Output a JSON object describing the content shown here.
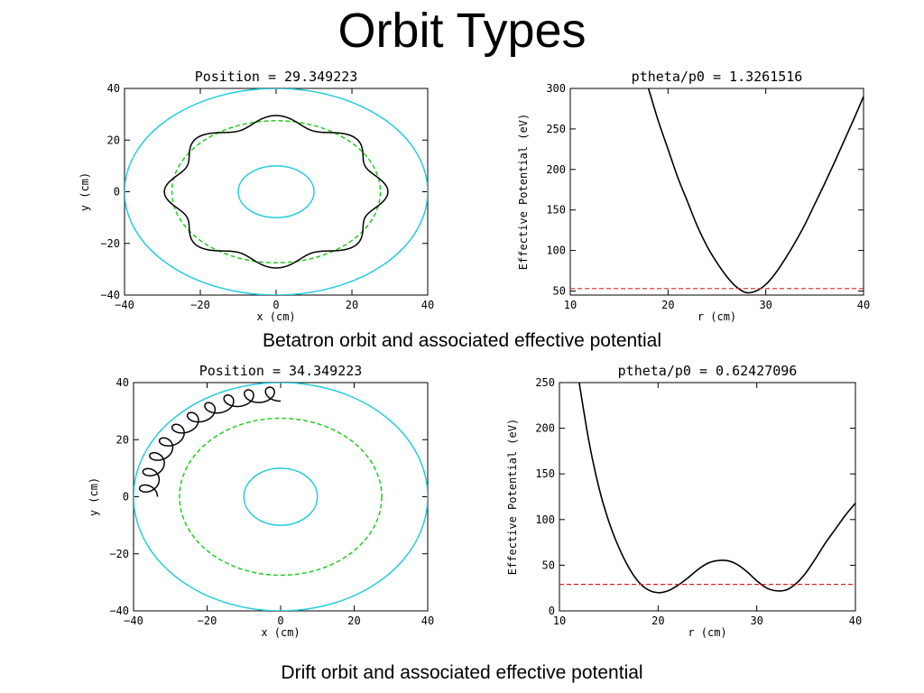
{
  "slide_title": "Orbit Types",
  "caption_top": "Betatron orbit and associated effective potential",
  "caption_bottom": "Drift orbit and associated effective potential",
  "colors": {
    "wall": "#22ccdd",
    "reference_orbit": "#22cc22",
    "trajectory": "#000000",
    "energy_level": "#dd2222"
  },
  "chart_data": [
    {
      "id": "orbit-top",
      "type": "line",
      "title": "Position = 29.349223",
      "xlabel": "x (cm)",
      "ylabel": "y (cm)",
      "xlim": [
        -40,
        40
      ],
      "ylim": [
        -40,
        40
      ],
      "xticks": [
        -40,
        -20,
        0,
        20,
        40
      ],
      "yticks": [
        -40,
        -20,
        0,
        20,
        40
      ],
      "tick_labels_x": [
        "−40",
        "−20",
        "0",
        "20",
        "40"
      ],
      "tick_labels_y": [
        "−40",
        "−20",
        "0",
        "20",
        "40"
      ],
      "circles": [
        {
          "name": "outer wall",
          "r": 40,
          "color": "#22ccdd",
          "style": "solid"
        },
        {
          "name": "inner wall",
          "r": 10,
          "color": "#22ccdd",
          "style": "solid"
        },
        {
          "name": "reference orbit",
          "r": 27.5,
          "color": "#22cc22",
          "style": "dashed"
        }
      ],
      "trajectory": {
        "kind": "betatron",
        "mean_r": 27.5,
        "amplitude": 2.0,
        "lobes": 8,
        "phase_deg": 0,
        "color": "#000000"
      }
    },
    {
      "id": "potential-top",
      "type": "line",
      "title": "ptheta/p0 = 1.3261516",
      "xlabel": "r (cm)",
      "ylabel": "Effective Potential (eV)",
      "xlim": [
        10,
        40
      ],
      "ylim": [
        45,
        300
      ],
      "xticks": [
        10,
        20,
        30,
        40
      ],
      "yticks": [
        50,
        100,
        150,
        200,
        250,
        300
      ],
      "tick_labels_x": [
        "10",
        "20",
        "30",
        "40"
      ],
      "tick_labels_y": [
        "50",
        "100",
        "150",
        "200",
        "250",
        "300"
      ],
      "series": [
        {
          "style": "solid",
          "color": "#000000",
          "x": [
            18,
            19,
            20,
            21,
            22,
            23,
            24,
            25,
            26,
            27,
            28,
            29,
            30,
            31,
            32,
            33,
            34,
            35,
            36,
            37,
            38,
            39,
            40
          ],
          "y": [
            300,
            260,
            225,
            190,
            160,
            130,
            105,
            85,
            68,
            55,
            48,
            50,
            58,
            72,
            90,
            110,
            132,
            157,
            182,
            208,
            235,
            262,
            290
          ]
        }
      ],
      "hline": {
        "y": 53,
        "color": "#dd2222",
        "style": "dashed"
      }
    },
    {
      "id": "orbit-bottom",
      "type": "line",
      "title": "Position = 34.349223",
      "xlabel": "x (cm)",
      "ylabel": "y (cm)",
      "xlim": [
        -40,
        40
      ],
      "ylim": [
        -40,
        40
      ],
      "xticks": [
        -40,
        -20,
        0,
        20,
        40
      ],
      "yticks": [
        -40,
        -20,
        0,
        20,
        40
      ],
      "tick_labels_x": [
        "−40",
        "−20",
        "0",
        "20",
        "40"
      ],
      "tick_labels_y": [
        "−40",
        "−20",
        "0",
        "20",
        "40"
      ],
      "circles": [
        {
          "name": "outer wall",
          "r": 40,
          "color": "#22ccdd",
          "style": "solid"
        },
        {
          "name": "inner wall",
          "r": 10,
          "color": "#22ccdd",
          "style": "solid"
        },
        {
          "name": "reference orbit",
          "r": 27.5,
          "color": "#22cc22",
          "style": "dashed"
        }
      ],
      "trajectory": {
        "kind": "drift",
        "guide_r": 33.5,
        "gyro_r": 2.5,
        "start_deg": 180,
        "end_deg": 90,
        "loops": 10,
        "color": "#000000"
      }
    },
    {
      "id": "potential-bottom",
      "type": "line",
      "title": "ptheta/p0 = 0.62427096",
      "xlabel": "r (cm)",
      "ylabel": "Effective Potential (eV)",
      "xlim": [
        10,
        40
      ],
      "ylim": [
        0,
        250
      ],
      "xticks": [
        10,
        20,
        30,
        40
      ],
      "yticks": [
        0,
        50,
        100,
        150,
        200,
        250
      ],
      "tick_labels_x": [
        "10",
        "20",
        "30",
        "40"
      ],
      "tick_labels_y": [
        "0",
        "50",
        "100",
        "150",
        "200",
        "250"
      ],
      "series": [
        {
          "style": "solid",
          "color": "#000000",
          "x": [
            12,
            13,
            14,
            15,
            16,
            17,
            18,
            19,
            20,
            21,
            22,
            23,
            24,
            25,
            26,
            27,
            28,
            29,
            30,
            31,
            32,
            33,
            34,
            35,
            36,
            37,
            38,
            39,
            40
          ],
          "y": [
            250,
            185,
            135,
            98,
            70,
            48,
            32,
            23,
            20,
            22,
            28,
            36,
            45,
            52,
            55,
            55,
            51,
            43,
            33,
            25,
            22,
            23,
            30,
            42,
            58,
            75,
            90,
            105,
            118
          ]
        }
      ],
      "hline": {
        "y": 29,
        "color": "#dd2222",
        "style": "dashed"
      }
    }
  ]
}
